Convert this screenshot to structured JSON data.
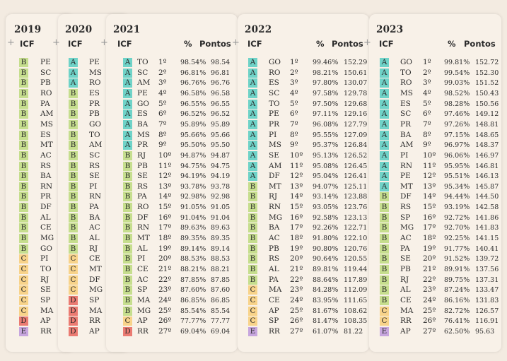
{
  "colors": {
    "A": "#6fd3c8",
    "B": "#c6de8e",
    "C": "#f8d38a",
    "D": "#eb7b72",
    "E": "#c7a6de"
  },
  "labels": {
    "icf": "ICF",
    "pct": "%",
    "pts": "Pontos"
  },
  "years": [
    {
      "year": "2019",
      "rows": [
        [
          "B",
          "PE"
        ],
        [
          "B",
          "SC"
        ],
        [
          "B",
          "PB"
        ],
        [
          "B",
          "RO"
        ],
        [
          "B",
          "PA"
        ],
        [
          "B",
          "AM"
        ],
        [
          "B",
          "MS"
        ],
        [
          "B",
          "ES"
        ],
        [
          "B",
          "MT"
        ],
        [
          "B",
          "AC"
        ],
        [
          "B",
          "RS"
        ],
        [
          "B",
          "BA"
        ],
        [
          "B",
          "RN"
        ],
        [
          "B",
          "PR"
        ],
        [
          "B",
          "DF"
        ],
        [
          "B",
          "AL"
        ],
        [
          "B",
          "CE"
        ],
        [
          "B",
          "MG"
        ],
        [
          "B",
          "GO"
        ],
        [
          "C",
          "PI"
        ],
        [
          "C",
          "TO"
        ],
        [
          "C",
          "RJ"
        ],
        [
          "C",
          "SE"
        ],
        [
          "C",
          "SP"
        ],
        [
          "C",
          "MA"
        ],
        [
          "D",
          "AP"
        ],
        [
          "E",
          "RR"
        ]
      ]
    },
    {
      "year": "2020",
      "rows": [
        [
          "A",
          "PE"
        ],
        [
          "A",
          "MS"
        ],
        [
          "A",
          "RO"
        ],
        [
          "B",
          "ES"
        ],
        [
          "B",
          "PR"
        ],
        [
          "B",
          "PB"
        ],
        [
          "B",
          "GO"
        ],
        [
          "B",
          "TO"
        ],
        [
          "B",
          "AM"
        ],
        [
          "B",
          "SC"
        ],
        [
          "B",
          "RS"
        ],
        [
          "B",
          "SE"
        ],
        [
          "B",
          "PI"
        ],
        [
          "B",
          "RN"
        ],
        [
          "B",
          "PA"
        ],
        [
          "B",
          "BA"
        ],
        [
          "B",
          "AC"
        ],
        [
          "B",
          "AL"
        ],
        [
          "B",
          "RJ"
        ],
        [
          "C",
          "CE"
        ],
        [
          "C",
          "MT"
        ],
        [
          "C",
          "DF"
        ],
        [
          "C",
          "MG"
        ],
        [
          "D",
          "SP"
        ],
        [
          "D",
          "MA"
        ],
        [
          "D",
          "RR"
        ],
        [
          "D",
          "AP"
        ]
      ]
    },
    {
      "year": "2021",
      "rows": [
        [
          "A",
          "TO",
          "1º",
          "98.54%",
          "98.54"
        ],
        [
          "A",
          "SC",
          "2º",
          "96.81%",
          "96.81"
        ],
        [
          "A",
          "AM",
          "3º",
          "96.76%",
          "96.76"
        ],
        [
          "A",
          "PE",
          "4º",
          "96.58%",
          "96.58"
        ],
        [
          "A",
          "GO",
          "5º",
          "96.55%",
          "96.55"
        ],
        [
          "A",
          "ES",
          "6º",
          "96.52%",
          "96.52"
        ],
        [
          "A",
          "BA",
          "7º",
          "95.89%",
          "95.89"
        ],
        [
          "A",
          "MS",
          "8º",
          "95.66%",
          "95.66"
        ],
        [
          "A",
          "PR",
          "9º",
          "95.50%",
          "95.50"
        ],
        [
          "B",
          "RJ",
          "10º",
          "94.87%",
          "94.87"
        ],
        [
          "B",
          "PB",
          "11º",
          "94.75%",
          "94.75"
        ],
        [
          "B",
          "SE",
          "12º",
          "94.19%",
          "94.19"
        ],
        [
          "B",
          "RS",
          "13º",
          "93.78%",
          "93.78"
        ],
        [
          "B",
          "PA",
          "14º",
          "92.98%",
          "92.98"
        ],
        [
          "B",
          "RO",
          "15º",
          "91.05%",
          "91.05"
        ],
        [
          "B",
          "DF",
          "16º",
          "91.04%",
          "91.04"
        ],
        [
          "B",
          "RN",
          "17º",
          "89.63%",
          "89.63"
        ],
        [
          "B",
          "MT",
          "18º",
          "89.35%",
          "89.35"
        ],
        [
          "B",
          "AL",
          "19º",
          "89.14%",
          "89.14"
        ],
        [
          "B",
          "PI",
          "20º",
          "88.53%",
          "88.53"
        ],
        [
          "B",
          "CE",
          "21º",
          "88.21%",
          "88.21"
        ],
        [
          "B",
          "AC",
          "22º",
          "87.85%",
          "87.85"
        ],
        [
          "B",
          "SP",
          "23º",
          "87.60%",
          "87.60"
        ],
        [
          "B",
          "MA",
          "24º",
          "86.85%",
          "86.85"
        ],
        [
          "B",
          "MG",
          "25º",
          "85.54%",
          "85.54"
        ],
        [
          "C",
          "AP",
          "26º",
          "77.77%",
          "77.77"
        ],
        [
          "D",
          "RR",
          "27º",
          "69.04%",
          "69.04"
        ]
      ]
    },
    {
      "year": "2022",
      "rows": [
        [
          "A",
          "GO",
          "1º",
          "99.46%",
          "152.29"
        ],
        [
          "A",
          "RO",
          "2º",
          "98.21%",
          "150.61"
        ],
        [
          "A",
          "ES",
          "3º",
          "97.80%",
          "130.07"
        ],
        [
          "A",
          "SC",
          "4º",
          "97.58%",
          "129.78"
        ],
        [
          "A",
          "TO",
          "5º",
          "97.50%",
          "129.68"
        ],
        [
          "A",
          "PE",
          "6º",
          "97.11%",
          "129.16"
        ],
        [
          "A",
          "PR",
          "7º",
          "96.08%",
          "127.79"
        ],
        [
          "A",
          "PI",
          "8º",
          "95.55%",
          "127.09"
        ],
        [
          "A",
          "MS",
          "9º",
          "95.37%",
          "126.84"
        ],
        [
          "A",
          "SE",
          "10º",
          "95.13%",
          "126.52"
        ],
        [
          "A",
          "AM",
          "11º",
          "95.08%",
          "126.45"
        ],
        [
          "A",
          "DF",
          "12º",
          "95.04%",
          "126.41"
        ],
        [
          "B",
          "MT",
          "13º",
          "94.07%",
          "125.11"
        ],
        [
          "B",
          "RJ",
          "14º",
          "93.14%",
          "123.88"
        ],
        [
          "B",
          "RN",
          "15º",
          "93.05%",
          "123.76"
        ],
        [
          "B",
          "MG",
          "16º",
          "92.58%",
          "123.13"
        ],
        [
          "B",
          "BA",
          "17º",
          "92.26%",
          "122.71"
        ],
        [
          "B",
          "AC",
          "18º",
          "91.80%",
          "122.10"
        ],
        [
          "B",
          "PB",
          "19º",
          "90.80%",
          "120.76"
        ],
        [
          "B",
          "RS",
          "20º",
          "90.64%",
          "120.55"
        ],
        [
          "B",
          "AL",
          "21º",
          "89.81%",
          "119.44"
        ],
        [
          "B",
          "PA",
          "22º",
          "88.64%",
          "117.89"
        ],
        [
          "C",
          "MA",
          "23º",
          "84.28%",
          "112.09"
        ],
        [
          "C",
          "CE",
          "24º",
          "83.95%",
          "111.65"
        ],
        [
          "C",
          "AP",
          "25º",
          "81.67%",
          "108.62"
        ],
        [
          "C",
          "SP",
          "26º",
          "81.47%",
          "108.35"
        ],
        [
          "E",
          "RR",
          "27º",
          "61.07%",
          "81.22"
        ]
      ]
    },
    {
      "year": "2023",
      "rows": [
        [
          "A",
          "GO",
          "1º",
          "99.81%",
          "152.72"
        ],
        [
          "A",
          "TO",
          "2º",
          "99.54%",
          "152.30"
        ],
        [
          "A",
          "RO",
          "3º",
          "99.03%",
          "151.52"
        ],
        [
          "A",
          "MS",
          "4º",
          "98.52%",
          "150.43"
        ],
        [
          "A",
          "ES",
          "5º",
          "98.28%",
          "150.56"
        ],
        [
          "A",
          "SC",
          "6º",
          "97.46%",
          "149.12"
        ],
        [
          "A",
          "PR",
          "7º",
          "97.26%",
          "148.81"
        ],
        [
          "A",
          "BA",
          "8º",
          "97.15%",
          "148.65"
        ],
        [
          "A",
          "AM",
          "9º",
          "96.97%",
          "148.37"
        ],
        [
          "A",
          "PI",
          "10º",
          "96.06%",
          "146.97"
        ],
        [
          "A",
          "RN",
          "11º",
          "95.95%",
          "146.81"
        ],
        [
          "A",
          "PE",
          "12º",
          "95.51%",
          "146.13"
        ],
        [
          "A",
          "MT",
          "13º",
          "95.34%",
          "145.87"
        ],
        [
          "B",
          "DF",
          "14º",
          "94.44%",
          "144.50"
        ],
        [
          "B",
          "RS",
          "15º",
          "93.19%",
          "142.58"
        ],
        [
          "B",
          "SP",
          "16º",
          "92.72%",
          "141.86"
        ],
        [
          "B",
          "MG",
          "17º",
          "92.70%",
          "141.83"
        ],
        [
          "B",
          "AC",
          "18º",
          "92.25%",
          "141.15"
        ],
        [
          "B",
          "PA",
          "19º",
          "91.77%",
          "140.41"
        ],
        [
          "B",
          "SE",
          "20º",
          "91.52%",
          "139.72"
        ],
        [
          "B",
          "PB",
          "21º",
          "89.91%",
          "137.56"
        ],
        [
          "B",
          "RJ",
          "22º",
          "89.75%",
          "137.31"
        ],
        [
          "B",
          "AL",
          "23º",
          "87.24%",
          "133.47"
        ],
        [
          "B",
          "CE",
          "24º",
          "86.16%",
          "131.83"
        ],
        [
          "C",
          "MA",
          "25º",
          "82.72%",
          "126.57"
        ],
        [
          "C",
          "RR",
          "26º",
          "76.41%",
          "116.91"
        ],
        [
          "E",
          "AP",
          "27º",
          "62.50%",
          "95.63"
        ]
      ]
    }
  ]
}
